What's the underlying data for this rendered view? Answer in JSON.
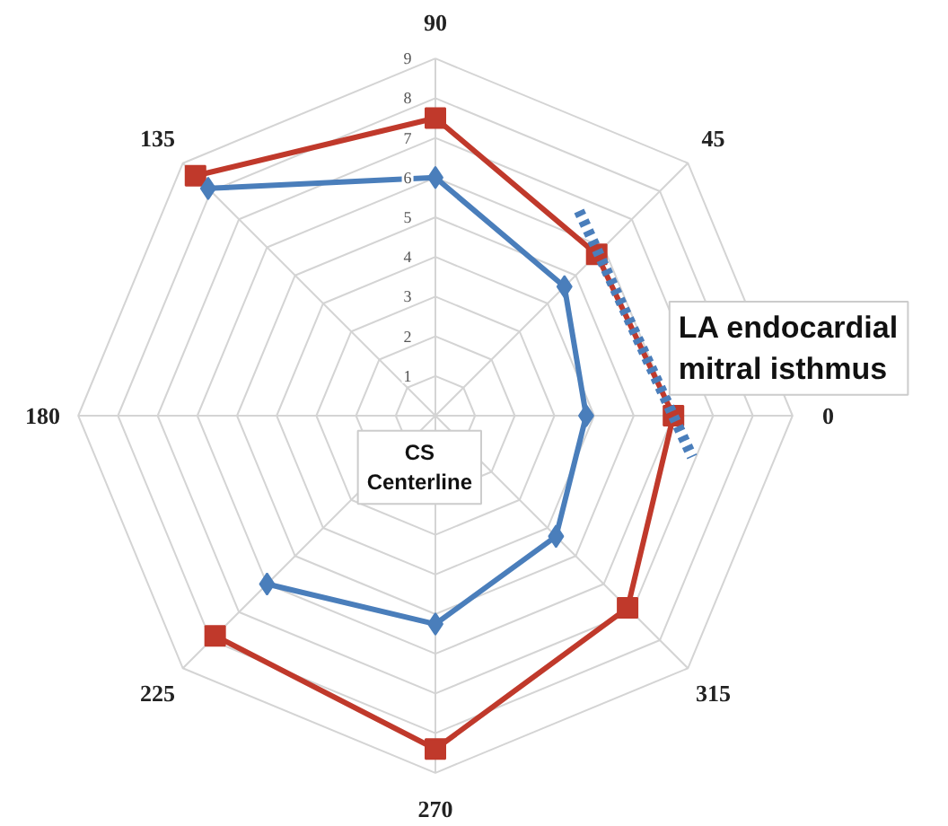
{
  "chart_data": {
    "type": "radar",
    "categories": [
      "90",
      "45",
      "0",
      "315",
      "270",
      "225",
      "180",
      "135"
    ],
    "ylim": [
      0,
      9
    ],
    "yticks": [
      1,
      2,
      3,
      4,
      5,
      6,
      7,
      8,
      9
    ],
    "grid": true,
    "series": [
      {
        "color": "#c0392b",
        "marker": "square",
        "values": [
          7.5,
          5.75,
          6,
          6.85,
          8.4,
          7.85,
          null,
          8.55
        ]
      },
      {
        "color": "#4a7ebb",
        "marker": "diamond",
        "values": [
          6,
          4.6,
          3.8,
          4.3,
          5.25,
          6,
          null,
          8.1
        ]
      }
    ],
    "annotations": [
      "CS\nCenterline",
      "LA endocardial\nmitral isthmus"
    ]
  }
}
